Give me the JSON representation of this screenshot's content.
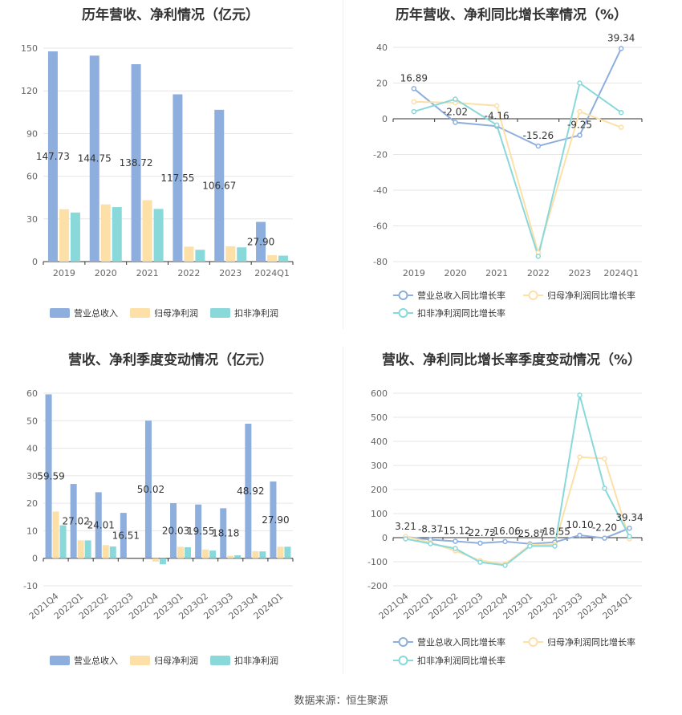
{
  "footer": {
    "source": "数据来源：恒生聚源"
  },
  "chart_data": [
    {
      "id": "annual_revenue_profit",
      "type": "bar",
      "title": "历年营收、净利情况（亿元）",
      "categories": [
        "2019",
        "2020",
        "2021",
        "2022",
        "2023",
        "2024Q1"
      ],
      "series": [
        {
          "name": "营业总收入",
          "color": "#8eaedd",
          "values": [
            147.73,
            144.75,
            138.72,
            117.55,
            106.67,
            27.9
          ],
          "labeled": true
        },
        {
          "name": "归母净利润",
          "color": "#fddfa8",
          "values": [
            36.8,
            40.2,
            43.2,
            10.5,
            10.8,
            4.5
          ],
          "labeled": false
        },
        {
          "name": "扣非净利润",
          "color": "#89d8da",
          "values": [
            34.5,
            38.3,
            37.0,
            8.3,
            10.0,
            4.2
          ],
          "labeled": false
        }
      ],
      "data_labels": [
        "147.73",
        "144.75",
        "138.72",
        "117.55",
        "106.67",
        "27.90"
      ],
      "y_ticks": [
        "0",
        "30",
        "60",
        "90",
        "120",
        "150"
      ],
      "ylim": [
        0,
        150
      ],
      "legend_position": "bottom"
    },
    {
      "id": "annual_growth",
      "type": "line",
      "title": "历年营收、净利同比增长率情况（%）",
      "categories": [
        "2019",
        "2020",
        "2021",
        "2022",
        "2023",
        "2024Q1"
      ],
      "series": [
        {
          "name": "营业总收入同比增长率",
          "color": "#8eaedd",
          "values": [
            16.89,
            -2.02,
            -4.16,
            -15.26,
            -9.25,
            39.34
          ],
          "labeled": true
        },
        {
          "name": "归母净利润同比增长率",
          "color": "#fddfa8",
          "values": [
            9.5,
            9.0,
            7.3,
            -75.0,
            4.0,
            -4.8
          ],
          "labeled": false
        },
        {
          "name": "扣非净利润同比增长率",
          "color": "#89d8da",
          "values": [
            4.0,
            11.0,
            -3.5,
            -77.0,
            20.0,
            3.5
          ],
          "labeled": false
        }
      ],
      "data_labels": [
        "16.89",
        "-2.02",
        "-4.16",
        "-15.26",
        "-9.25",
        "39.34"
      ],
      "y_ticks": [
        "-80",
        "-60",
        "-40",
        "-20",
        "0",
        "20",
        "40"
      ],
      "ylim": [
        -80,
        40
      ],
      "legend_position": "bottom"
    },
    {
      "id": "quarterly_revenue_profit",
      "type": "bar",
      "title": "营收、净利季度变动情况（亿元）",
      "categories": [
        "2021Q4",
        "2022Q1",
        "2022Q2",
        "2022Q3",
        "2022Q4",
        "2023Q1",
        "2023Q2",
        "2023Q3",
        "2023Q4",
        "2024Q1"
      ],
      "series": [
        {
          "name": "营业总收入",
          "color": "#8eaedd",
          "values": [
            59.59,
            27.02,
            24.01,
            16.51,
            50.02,
            20.03,
            19.55,
            18.18,
            48.92,
            27.9
          ],
          "labeled": true
        },
        {
          "name": "归母净利润",
          "color": "#fddfa8",
          "values": [
            17.0,
            6.5,
            4.8,
            0.0,
            -1.2,
            4.2,
            3.2,
            0.9,
            2.6,
            4.2
          ],
          "labeled": false
        },
        {
          "name": "扣非净利润",
          "color": "#89d8da",
          "values": [
            12.0,
            6.5,
            4.3,
            0.0,
            -2.2,
            4.0,
            2.8,
            1.1,
            2.5,
            4.2
          ],
          "labeled": false
        }
      ],
      "data_labels": [
        "59.59",
        "27.02",
        "24.01",
        "16.51",
        "50.02",
        "20.03",
        "19.55",
        "18.18",
        "48.92",
        "27.90"
      ],
      "y_ticks": [
        "-10",
        "0",
        "10",
        "20",
        "30",
        "40",
        "50",
        "60"
      ],
      "ylim": [
        -10,
        60
      ],
      "legend_position": "bottom"
    },
    {
      "id": "quarterly_growth",
      "type": "line",
      "title": "营收、净利同比增长率季度变动情况（%）",
      "categories": [
        "2021Q4",
        "2022Q1",
        "2022Q2",
        "2022Q3",
        "2022Q4",
        "2023Q1",
        "2023Q2",
        "2023Q3",
        "2023Q4",
        "2024Q1"
      ],
      "series": [
        {
          "name": "营业总收入同比增长率",
          "color": "#8eaedd",
          "values": [
            3.21,
            -8.37,
            -15.12,
            -22.72,
            -16.06,
            -25.87,
            -18.55,
            10.1,
            -2.2,
            39.34
          ],
          "labeled": true
        },
        {
          "name": "归母净利润同比增长率",
          "color": "#fddfa8",
          "values": [
            5,
            -20,
            -55,
            -95,
            -110,
            -30,
            -28,
            335,
            328,
            -5
          ],
          "labeled": false
        },
        {
          "name": "扣非净利润同比增长率",
          "color": "#89d8da",
          "values": [
            -5,
            -25,
            -45,
            -102,
            -115,
            -35,
            -35,
            592,
            205,
            5
          ],
          "labeled": false
        }
      ],
      "data_labels": [
        "3.21",
        "-8.37",
        "-15.12",
        "-22.72",
        "-16.06",
        "-25.87",
        "-18.55",
        "10.10",
        "-2.20",
        "39.34"
      ],
      "y_ticks": [
        "-200",
        "-100",
        "0",
        "100",
        "200",
        "300",
        "400",
        "500",
        "600"
      ],
      "ylim": [
        -200,
        600
      ],
      "legend_position": "bottom"
    }
  ]
}
